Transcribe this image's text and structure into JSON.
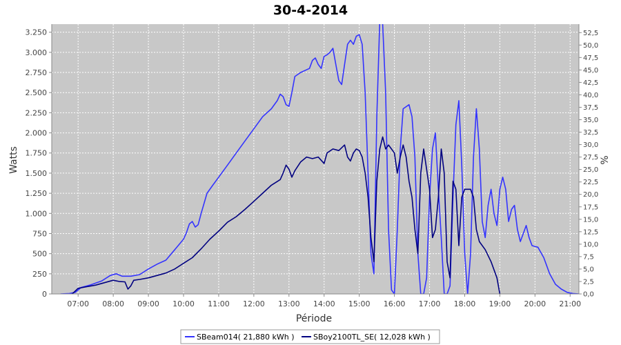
{
  "chart_data": {
    "type": "line",
    "title": "30-4-2014",
    "xlabel": "Période",
    "ylabel": "Watts",
    "y2label": "%",
    "x_ticks": [
      "07:00",
      "08:00",
      "09:00",
      "10:00",
      "11:00",
      "12:00",
      "13:00",
      "14:00",
      "15:00",
      "16:00",
      "17:00",
      "18:00",
      "19:00",
      "20:00",
      "21:00"
    ],
    "xlim": [
      "06:15",
      "21:15"
    ],
    "ylim": [
      0,
      3350
    ],
    "y_ticks": [
      0,
      250,
      500,
      750,
      1000,
      1250,
      1500,
      1750,
      2000,
      2250,
      2500,
      2750,
      3000,
      3250
    ],
    "y_tick_labels": [
      "0",
      "250",
      "500",
      "750",
      "1.000",
      "1.250",
      "1.500",
      "1.750",
      "2.000",
      "2.250",
      "2.500",
      "2.750",
      "3.000",
      "3.250"
    ],
    "y2lim": [
      0,
      54.2
    ],
    "y2_tick_labels": [
      "0,0",
      "2,5",
      "5,0",
      "7,5",
      "10,0",
      "12,5",
      "15,0",
      "17,5",
      "20,0",
      "22,5",
      "25,0",
      "27,5",
      "30,0",
      "32,5",
      "35,0",
      "37,5",
      "40,0",
      "42,5",
      "45,0",
      "47,5",
      "50,0",
      "52,5"
    ],
    "grid": true,
    "legend_position": "bottom",
    "series": [
      {
        "name": "SBeam014( 21,880 kWh )",
        "color": "#3333ff",
        "points": [
          [
            "06:30",
            0
          ],
          [
            "06:45",
            5
          ],
          [
            "06:55",
            20
          ],
          [
            "07:05",
            80
          ],
          [
            "07:20",
            110
          ],
          [
            "07:40",
            160
          ],
          [
            "07:55",
            230
          ],
          [
            "08:05",
            250
          ],
          [
            "08:15",
            220
          ],
          [
            "08:30",
            220
          ],
          [
            "08:45",
            240
          ],
          [
            "09:00",
            310
          ],
          [
            "09:15",
            370
          ],
          [
            "09:30",
            420
          ],
          [
            "09:45",
            550
          ],
          [
            "10:00",
            680
          ],
          [
            "10:05",
            760
          ],
          [
            "10:10",
            870
          ],
          [
            "10:15",
            900
          ],
          [
            "10:20",
            830
          ],
          [
            "10:25",
            860
          ],
          [
            "10:30",
            1000
          ],
          [
            "10:40",
            1250
          ],
          [
            "10:50",
            1350
          ],
          [
            "11:00",
            1450
          ],
          [
            "11:15",
            1600
          ],
          [
            "11:30",
            1750
          ],
          [
            "11:45",
            1900
          ],
          [
            "12:00",
            2050
          ],
          [
            "12:15",
            2200
          ],
          [
            "12:30",
            2300
          ],
          [
            "12:40",
            2400
          ],
          [
            "12:45",
            2480
          ],
          [
            "12:50",
            2450
          ],
          [
            "12:55",
            2350
          ],
          [
            "13:00",
            2330
          ],
          [
            "13:05",
            2500
          ],
          [
            "13:10",
            2700
          ],
          [
            "13:20",
            2750
          ],
          [
            "13:35",
            2800
          ],
          [
            "13:40",
            2900
          ],
          [
            "13:45",
            2930
          ],
          [
            "13:50",
            2850
          ],
          [
            "13:55",
            2800
          ],
          [
            "14:00",
            2950
          ],
          [
            "14:05",
            2970
          ],
          [
            "14:10",
            3000
          ],
          [
            "14:15",
            3050
          ],
          [
            "14:20",
            2850
          ],
          [
            "14:25",
            2650
          ],
          [
            "14:30",
            2600
          ],
          [
            "14:35",
            2850
          ],
          [
            "14:40",
            3100
          ],
          [
            "14:45",
            3150
          ],
          [
            "14:50",
            3100
          ],
          [
            "14:55",
            3200
          ],
          [
            "15:00",
            3220
          ],
          [
            "15:05",
            3100
          ],
          [
            "15:10",
            2500
          ],
          [
            "15:15",
            1500
          ],
          [
            "15:20",
            500
          ],
          [
            "15:25",
            250
          ],
          [
            "15:30",
            2200
          ],
          [
            "15:35",
            3400
          ],
          [
            "15:40",
            3350
          ],
          [
            "15:45",
            2500
          ],
          [
            "15:50",
            800
          ],
          [
            "15:55",
            50
          ],
          [
            "16:00",
            0
          ],
          [
            "16:05",
            800
          ],
          [
            "16:10",
            1800
          ],
          [
            "16:15",
            2300
          ],
          [
            "16:25",
            2350
          ],
          [
            "16:30",
            2200
          ],
          [
            "16:35",
            1700
          ],
          [
            "16:40",
            500
          ],
          [
            "16:45",
            0
          ],
          [
            "16:50",
            0
          ],
          [
            "16:55",
            200
          ],
          [
            "17:00",
            1200
          ],
          [
            "17:05",
            1800
          ],
          [
            "17:10",
            2000
          ],
          [
            "17:15",
            1300
          ],
          [
            "17:20",
            700
          ],
          [
            "17:25",
            0
          ],
          [
            "17:30",
            0
          ],
          [
            "17:35",
            100
          ],
          [
            "17:40",
            1200
          ],
          [
            "17:45",
            2100
          ],
          [
            "17:50",
            2400
          ],
          [
            "17:55",
            1600
          ],
          [
            "18:00",
            500
          ],
          [
            "18:05",
            0
          ],
          [
            "18:10",
            500
          ],
          [
            "18:15",
            1700
          ],
          [
            "18:20",
            2300
          ],
          [
            "18:25",
            1800
          ],
          [
            "18:30",
            900
          ],
          [
            "18:35",
            700
          ],
          [
            "18:40",
            1100
          ],
          [
            "18:45",
            1300
          ],
          [
            "18:50",
            1000
          ],
          [
            "18:55",
            850
          ],
          [
            "19:00",
            1300
          ],
          [
            "19:05",
            1450
          ],
          [
            "19:10",
            1300
          ],
          [
            "19:15",
            900
          ],
          [
            "19:20",
            1050
          ],
          [
            "19:25",
            1100
          ],
          [
            "19:30",
            800
          ],
          [
            "19:35",
            650
          ],
          [
            "19:40",
            750
          ],
          [
            "19:45",
            850
          ],
          [
            "19:50",
            700
          ],
          [
            "19:55",
            600
          ],
          [
            "20:05",
            580
          ],
          [
            "20:15",
            450
          ],
          [
            "20:25",
            250
          ],
          [
            "20:35",
            120
          ],
          [
            "20:45",
            60
          ],
          [
            "20:55",
            20
          ],
          [
            "21:05",
            5
          ],
          [
            "21:15",
            0
          ]
        ]
      },
      {
        "name": "SBoy2100TL_SE( 12,028 kWh )",
        "color": "#000080",
        "points": [
          [
            "06:50",
            0
          ],
          [
            "07:00",
            70
          ],
          [
            "07:15",
            90
          ],
          [
            "07:30",
            110
          ],
          [
            "07:45",
            140
          ],
          [
            "07:55",
            160
          ],
          [
            "08:00",
            170
          ],
          [
            "08:10",
            155
          ],
          [
            "08:20",
            150
          ],
          [
            "08:25",
            60
          ],
          [
            "08:30",
            100
          ],
          [
            "08:35",
            170
          ],
          [
            "08:45",
            180
          ],
          [
            "09:00",
            200
          ],
          [
            "09:15",
            230
          ],
          [
            "09:30",
            260
          ],
          [
            "09:45",
            310
          ],
          [
            "10:00",
            380
          ],
          [
            "10:15",
            450
          ],
          [
            "10:30",
            560
          ],
          [
            "10:45",
            680
          ],
          [
            "11:00",
            780
          ],
          [
            "11:15",
            890
          ],
          [
            "11:30",
            960
          ],
          [
            "11:45",
            1050
          ],
          [
            "12:00",
            1150
          ],
          [
            "12:15",
            1250
          ],
          [
            "12:30",
            1350
          ],
          [
            "12:45",
            1420
          ],
          [
            "12:50",
            1500
          ],
          [
            "12:55",
            1600
          ],
          [
            "13:00",
            1550
          ],
          [
            "13:05",
            1450
          ],
          [
            "13:10",
            1530
          ],
          [
            "13:20",
            1640
          ],
          [
            "13:30",
            1700
          ],
          [
            "13:40",
            1680
          ],
          [
            "13:50",
            1700
          ],
          [
            "14:00",
            1620
          ],
          [
            "14:05",
            1750
          ],
          [
            "14:15",
            1800
          ],
          [
            "14:25",
            1780
          ],
          [
            "14:35",
            1850
          ],
          [
            "14:40",
            1700
          ],
          [
            "14:45",
            1650
          ],
          [
            "14:50",
            1750
          ],
          [
            "14:55",
            1800
          ],
          [
            "15:00",
            1780
          ],
          [
            "15:05",
            1700
          ],
          [
            "15:10",
            1500
          ],
          [
            "15:15",
            1200
          ],
          [
            "15:20",
            700
          ],
          [
            "15:25",
            400
          ],
          [
            "15:30",
            1400
          ],
          [
            "15:35",
            1800
          ],
          [
            "15:40",
            1950
          ],
          [
            "15:45",
            1800
          ],
          [
            "15:50",
            1850
          ],
          [
            "16:00",
            1750
          ],
          [
            "16:05",
            1500
          ],
          [
            "16:10",
            1700
          ],
          [
            "16:15",
            1850
          ],
          [
            "16:20",
            1700
          ],
          [
            "16:25",
            1400
          ],
          [
            "16:30",
            1200
          ],
          [
            "16:35",
            800
          ],
          [
            "16:40",
            500
          ],
          [
            "16:45",
            1500
          ],
          [
            "16:50",
            1800
          ],
          [
            "17:00",
            1300
          ],
          [
            "17:05",
            700
          ],
          [
            "17:10",
            800
          ],
          [
            "17:15",
            1200
          ],
          [
            "17:20",
            1800
          ],
          [
            "17:25",
            1500
          ],
          [
            "17:30",
            400
          ],
          [
            "17:35",
            200
          ],
          [
            "17:40",
            1400
          ],
          [
            "17:45",
            1300
          ],
          [
            "17:50",
            600
          ],
          [
            "17:55",
            1200
          ],
          [
            "18:00",
            1300
          ],
          [
            "18:10",
            1300
          ],
          [
            "18:15",
            1200
          ],
          [
            "18:20",
            800
          ],
          [
            "18:25",
            650
          ],
          [
            "18:35",
            550
          ],
          [
            "18:45",
            400
          ],
          [
            "18:55",
            200
          ],
          [
            "19:00",
            0
          ]
        ]
      }
    ]
  }
}
